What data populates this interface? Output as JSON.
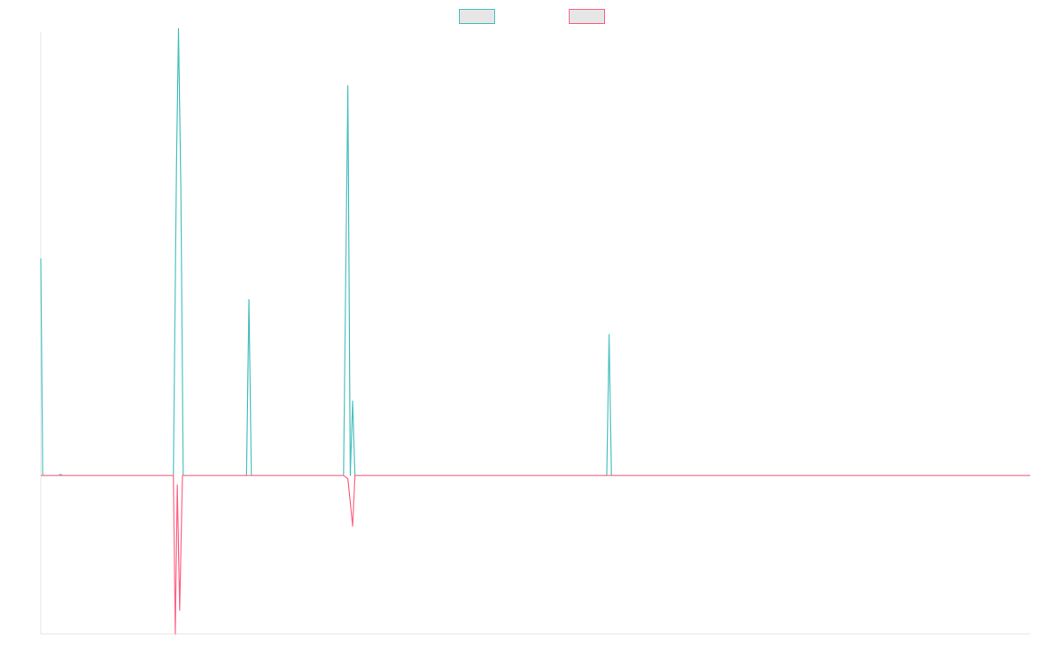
{
  "chart_data": {
    "type": "line",
    "title": "",
    "xlabel": "",
    "ylabel": "",
    "legend_position": "top-center",
    "grid": false,
    "x_range": [
      0,
      250
    ],
    "y_range": [
      -100,
      280
    ],
    "baseline": 0,
    "series": [
      {
        "color": "#4bc0c0",
        "legend_fill": "#e6e6e6",
        "points": [
          [
            0,
            137
          ],
          [
            0.5,
            0
          ],
          [
            4.5,
            0
          ],
          [
            5,
            0.7
          ],
          [
            5.5,
            0
          ],
          [
            33.5,
            0
          ],
          [
            34.3,
            195
          ],
          [
            34.8,
            282
          ],
          [
            35.4,
            180
          ],
          [
            36,
            0
          ],
          [
            52,
            0
          ],
          [
            52.6,
            111
          ],
          [
            53.2,
            0
          ],
          [
            76.5,
            0
          ],
          [
            77.6,
            246
          ],
          [
            78.2,
            0
          ],
          [
            78.8,
            47
          ],
          [
            79.4,
            0
          ],
          [
            143,
            0
          ],
          [
            143.6,
            89
          ],
          [
            144.2,
            0
          ],
          [
            250,
            0
          ]
        ]
      },
      {
        "color": "#ff6384",
        "legend_fill": "#e6e6e6",
        "points": [
          [
            0,
            0
          ],
          [
            33.5,
            0
          ],
          [
            34.0,
            -100
          ],
          [
            34.5,
            -6
          ],
          [
            35.1,
            -85
          ],
          [
            35.8,
            0
          ],
          [
            76.5,
            0
          ],
          [
            77.6,
            -2
          ],
          [
            78.8,
            -32
          ],
          [
            79.4,
            0
          ],
          [
            250,
            0
          ]
        ]
      }
    ]
  }
}
